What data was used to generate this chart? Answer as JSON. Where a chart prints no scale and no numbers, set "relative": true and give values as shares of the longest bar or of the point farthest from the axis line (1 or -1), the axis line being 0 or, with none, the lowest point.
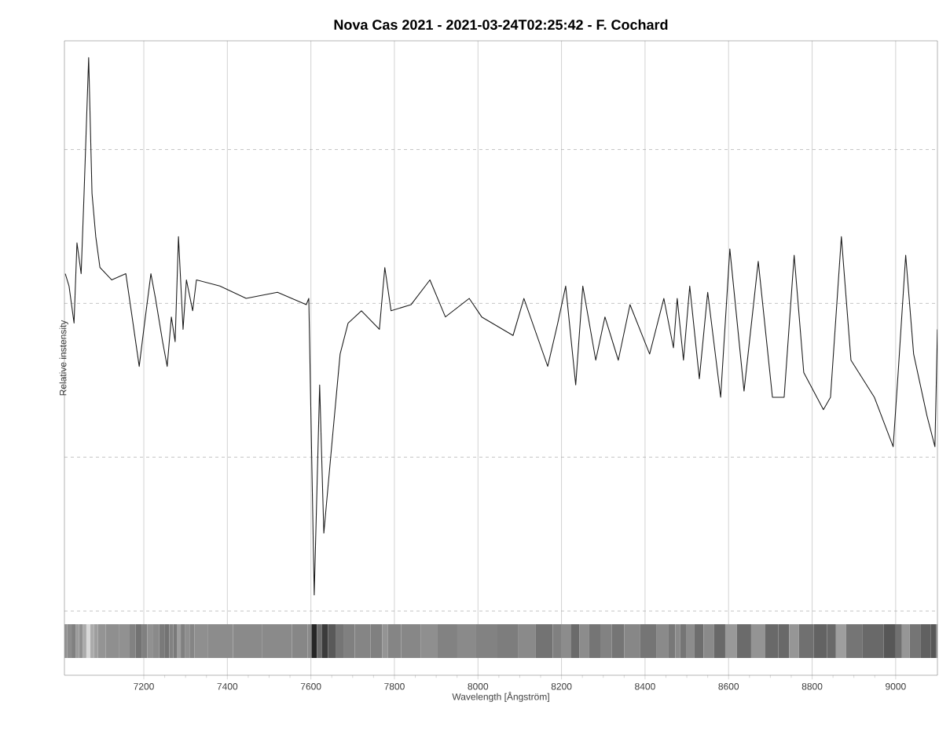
{
  "chart_data": {
    "type": "line",
    "title": "Nova Cas 2021 - 2021-03-24T02:25:42 - F. Cochard",
    "xlabel": "Wavelength [Ångström]",
    "ylabel": "Relative instensity",
    "relative": true,
    "grid": true,
    "marker": "none",
    "line_style": "solid",
    "xlim": [
      7010,
      9100
    ],
    "xticks": [
      7200,
      7400,
      7600,
      7800,
      8000,
      8200,
      8400,
      8600,
      8800,
      9000
    ],
    "x": [
      7012,
      7021,
      7033,
      7040,
      7050,
      7057,
      7068,
      7076,
      7085,
      7095,
      7123,
      7157,
      7172,
      7189,
      7200,
      7217,
      7228,
      7245,
      7256,
      7266,
      7275,
      7283,
      7294,
      7302,
      7317,
      7326,
      7382,
      7445,
      7520,
      7589,
      7595,
      7608,
      7621,
      7631,
      7651,
      7670,
      7689,
      7721,
      7764,
      7777,
      7792,
      7840,
      7885,
      7922,
      7979,
      8009,
      8084,
      8110,
      8167,
      8191,
      8210,
      8234,
      8251,
      8282,
      8304,
      8336,
      8364,
      8411,
      8445,
      8468,
      8477,
      8492,
      8507,
      8530,
      8550,
      8581,
      8603,
      8637,
      8671,
      8705,
      8733,
      8757,
      8780,
      8827,
      8844,
      8870,
      8893,
      8949,
      8994,
      9006,
      9024,
      9043,
      9075,
      9094,
      9100
    ],
    "series": [
      {
        "color": "#1a1a1a",
        "values": [
          0.65,
          0.63,
          0.57,
          0.7,
          0.65,
          0.78,
          1.0,
          0.78,
          0.71,
          0.66,
          0.64,
          0.65,
          0.58,
          0.5,
          0.56,
          0.65,
          0.61,
          0.54,
          0.5,
          0.58,
          0.54,
          0.71,
          0.56,
          0.64,
          0.59,
          0.64,
          0.63,
          0.61,
          0.62,
          0.6,
          0.61,
          0.13,
          0.47,
          0.23,
          0.38,
          0.52,
          0.57,
          0.59,
          0.56,
          0.66,
          0.59,
          0.6,
          0.64,
          0.58,
          0.61,
          0.58,
          0.55,
          0.61,
          0.5,
          0.57,
          0.63,
          0.47,
          0.63,
          0.51,
          0.58,
          0.51,
          0.6,
          0.52,
          0.61,
          0.53,
          0.61,
          0.51,
          0.63,
          0.48,
          0.62,
          0.45,
          0.69,
          0.46,
          0.67,
          0.45,
          0.45,
          0.68,
          0.49,
          0.43,
          0.45,
          0.71,
          0.51,
          0.45,
          0.37,
          0.49,
          0.68,
          0.52,
          0.42,
          0.37,
          0.56
        ]
      }
    ]
  }
}
